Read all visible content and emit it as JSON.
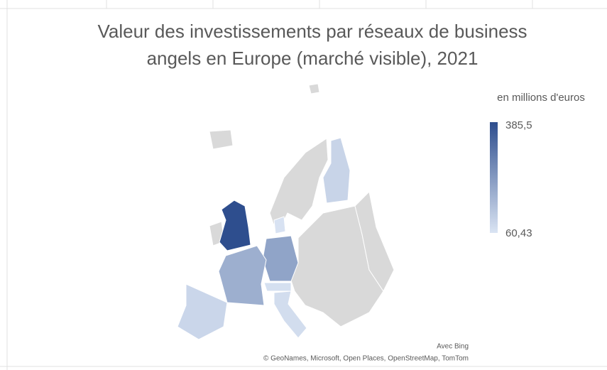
{
  "chart_data": {
    "type": "map",
    "title": "Valeur des investissements par réseaux de business angels en Europe (marché visible), 2021",
    "legend_title": "en millions d'euros",
    "scale": {
      "max": {
        "value": 385.5,
        "label": "385,5"
      },
      "min": {
        "value": 60.43,
        "label": "60,43"
      },
      "colors": [
        "#dae4f3",
        "#2e4e8e"
      ]
    },
    "values": [
      385.5,
      200,
      175,
      90,
      75,
      95,
      65,
      70
    ],
    "attribution": [
      "Avec Bing",
      "© GeoNames, Microsoft, Open Places, OpenStreetMap, TomTom"
    ]
  }
}
